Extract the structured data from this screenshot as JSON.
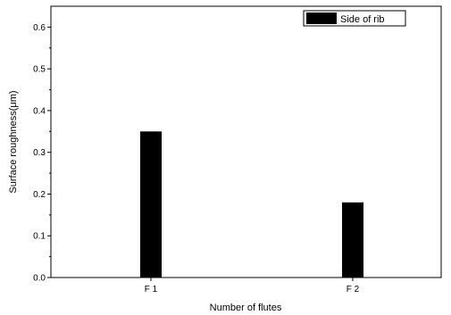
{
  "chart_data": {
    "type": "bar",
    "categories": [
      "F 1",
      "F 2"
    ],
    "series": [
      {
        "name": "Side of rib",
        "values": [
          0.35,
          0.18
        ],
        "color": "#000000"
      }
    ],
    "xlabel": "Number of flutes",
    "ylabel": "Surface roughness(μm)",
    "ylim": [
      0.0,
      0.65
    ],
    "yticks": [
      0.0,
      0.1,
      0.2,
      0.3,
      0.4,
      0.5,
      0.6
    ],
    "ytick_labels": [
      "0.0",
      "0.1",
      "0.2",
      "0.3",
      "0.4",
      "0.5",
      "0.6"
    ],
    "grid": false,
    "legend_position": "top-right"
  }
}
